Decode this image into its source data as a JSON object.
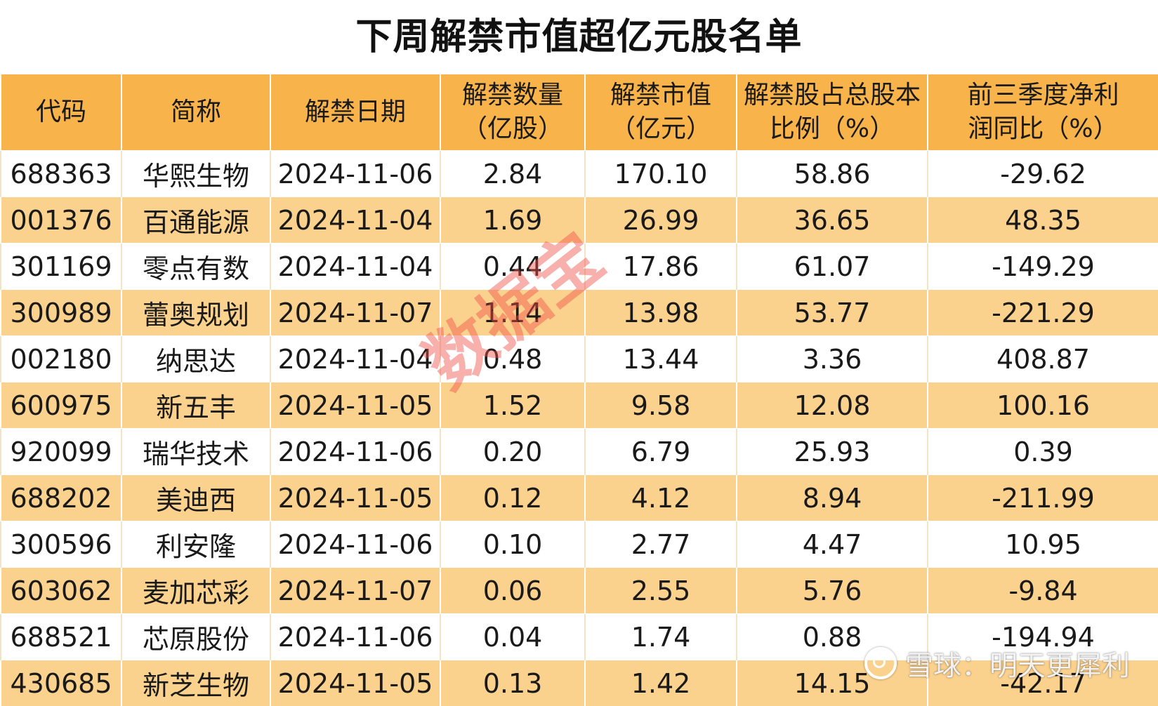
{
  "title": "下周解禁市值超亿元股名单",
  "columns": [
    {
      "lines": [
        "代码"
      ]
    },
    {
      "lines": [
        "简称"
      ]
    },
    {
      "lines": [
        "解禁日期"
      ]
    },
    {
      "lines": [
        "解禁数量",
        "（亿股）"
      ]
    },
    {
      "lines": [
        "解禁市值",
        "（亿元）"
      ]
    },
    {
      "lines": [
        "解禁股占总股本",
        "比例（%）"
      ]
    },
    {
      "lines": [
        "前三季度净利",
        "润同比（%）"
      ]
    }
  ],
  "rows": [
    [
      "688363",
      "华熙生物",
      "2024-11-06",
      "2.84",
      "170.10",
      "58.86",
      "-29.62"
    ],
    [
      "001376",
      "百通能源",
      "2024-11-04",
      "1.69",
      "26.99",
      "36.65",
      "48.35"
    ],
    [
      "301169",
      "零点有数",
      "2024-11-04",
      "0.44",
      "17.86",
      "61.07",
      "-149.29"
    ],
    [
      "300989",
      "蕾奥规划",
      "2024-11-07",
      "1.14",
      "13.98",
      "53.77",
      "-221.29"
    ],
    [
      "002180",
      "纳思达",
      "2024-11-04",
      "0.48",
      "13.44",
      "3.36",
      "408.87"
    ],
    [
      "600975",
      "新五丰",
      "2024-11-05",
      "1.52",
      "9.58",
      "12.08",
      "100.16"
    ],
    [
      "920099",
      "瑞华技术",
      "2024-11-06",
      "0.20",
      "6.79",
      "25.93",
      "0.39"
    ],
    [
      "688202",
      "美迪西",
      "2024-11-05",
      "0.12",
      "4.12",
      "8.94",
      "-211.99"
    ],
    [
      "300596",
      "利安隆",
      "2024-11-06",
      "0.10",
      "2.77",
      "4.47",
      "10.95"
    ],
    [
      "603062",
      "麦加芯彩",
      "2024-11-07",
      "0.06",
      "2.55",
      "5.76",
      "-9.84"
    ],
    [
      "688521",
      "芯原股份",
      "2024-11-06",
      "0.04",
      "1.74",
      "0.88",
      "-194.94"
    ],
    [
      "430685",
      "新芝生物",
      "2024-11-05",
      "0.13",
      "1.42",
      "14.15",
      "-42.17"
    ]
  ],
  "watermarks": {
    "center": "数据宝",
    "corner": "雪球：明天更犀利",
    "corner_icon": "snowball-logo-icon"
  },
  "colors": {
    "header_bg": "#f8b44a",
    "stripe_bg": "#fbd18e"
  }
}
